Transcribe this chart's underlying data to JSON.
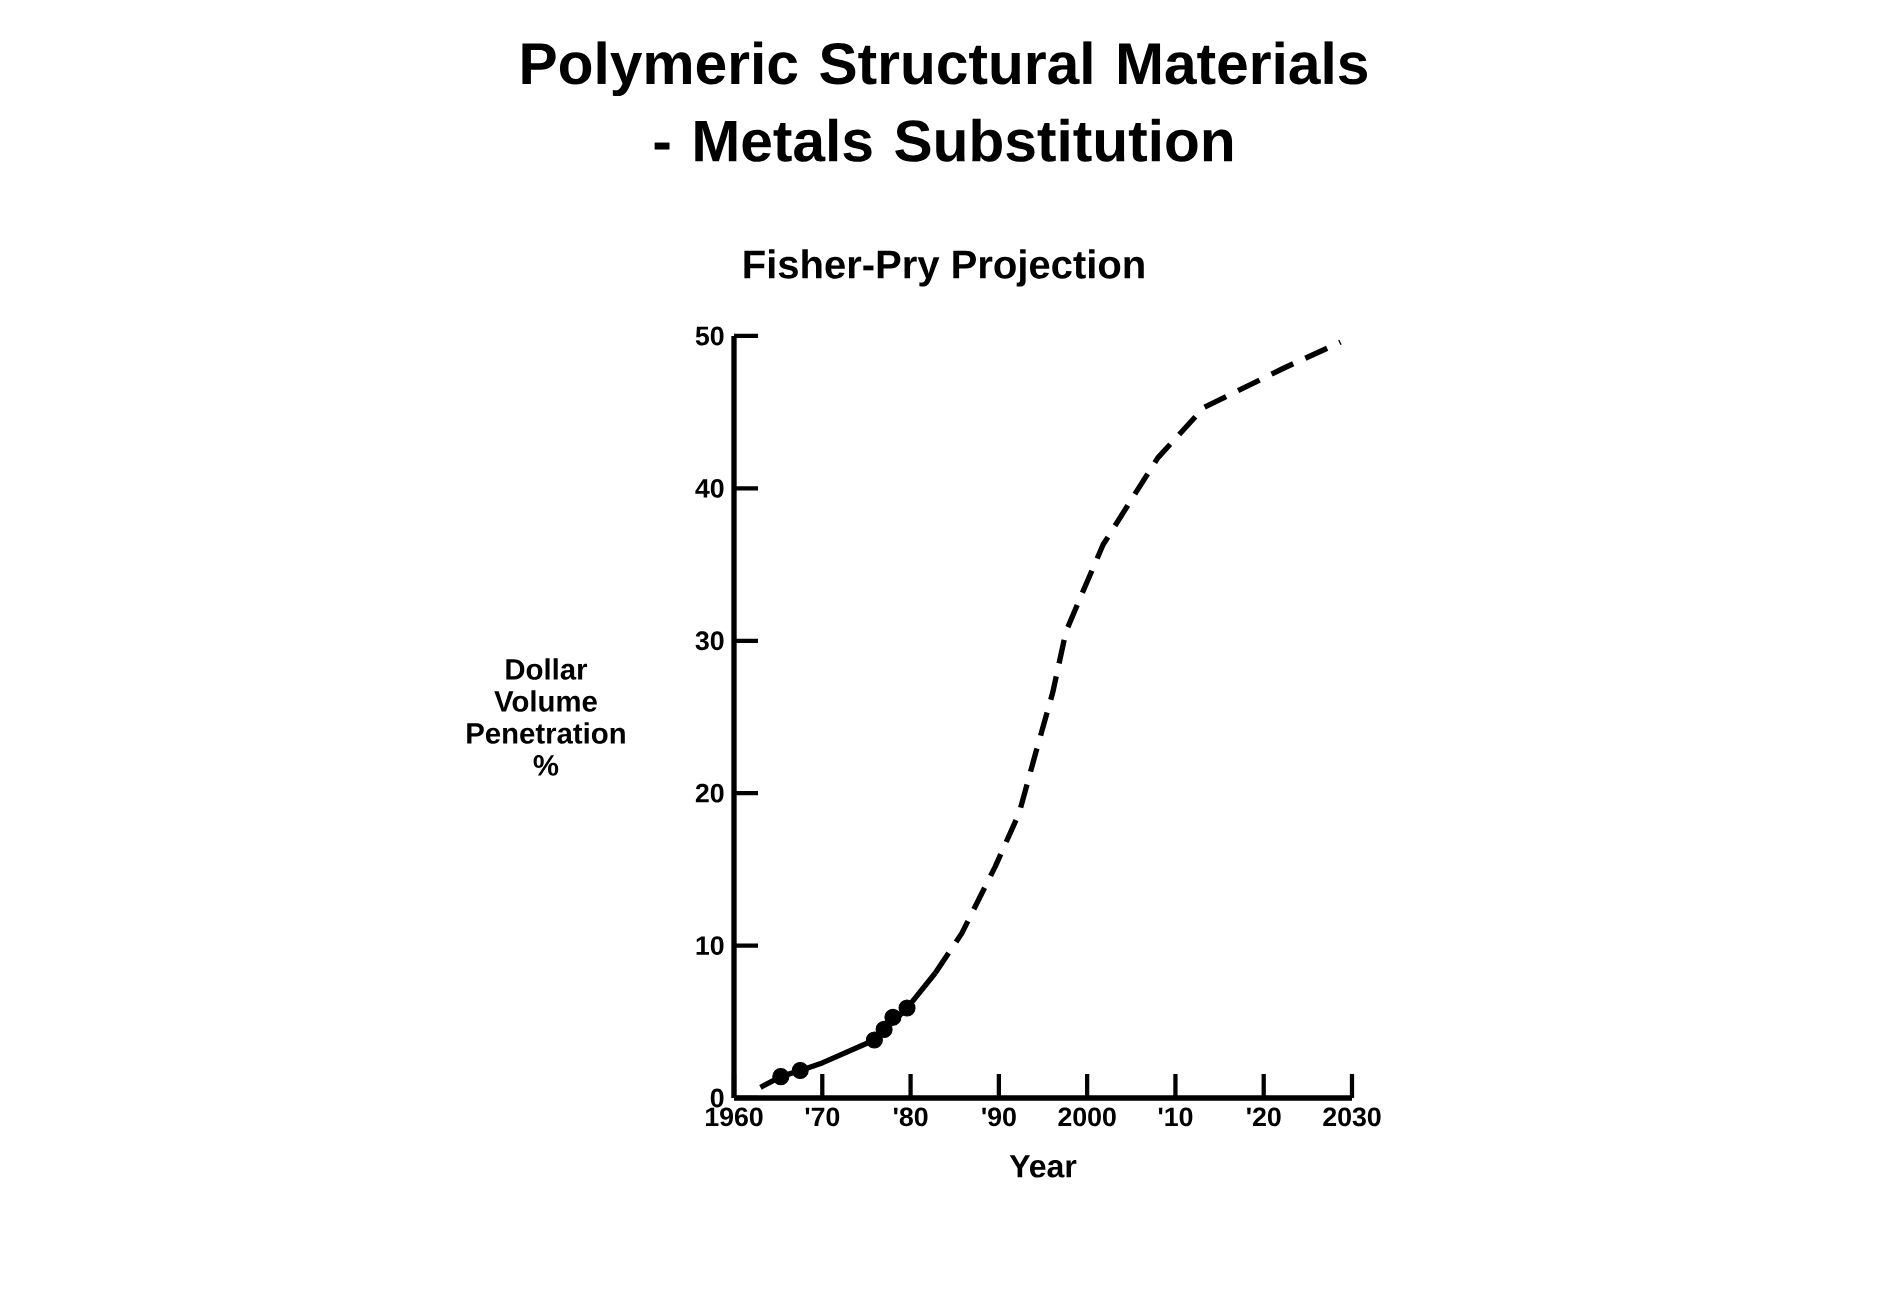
{
  "chart_data": {
    "type": "line",
    "title": "Polymeric Structural Materials - Metals Substitution",
    "subtitle": "Fisher-Pry Projection",
    "xlabel": "Year",
    "ylabel": "Dollar Volume Penetration %",
    "xlim": [
      1960,
      2030
    ],
    "ylim": [
      0,
      50
    ],
    "xticks": [
      {
        "value": 1960,
        "label": "1960"
      },
      {
        "value": 1970,
        "label": "'70"
      },
      {
        "value": 1980,
        "label": "'80"
      },
      {
        "value": 1990,
        "label": "'90"
      },
      {
        "value": 2000,
        "label": "2000"
      },
      {
        "value": 2010,
        "label": "'10"
      },
      {
        "value": 2020,
        "label": "'20"
      },
      {
        "value": 2030,
        "label": "2030"
      }
    ],
    "yticks": [
      0,
      10,
      20,
      30,
      40,
      50
    ],
    "series": [
      {
        "type": "scatter",
        "marker": "circle",
        "color": "#000000",
        "x": [
          1965.3,
          1967.5,
          1975.9,
          1977,
          1978,
          1979.6
        ],
        "values": [
          1.4,
          1.8,
          3.8,
          4.5,
          5.3,
          5.9
        ]
      },
      {
        "line_style": "solid",
        "marker": "none",
        "color": "#000000",
        "x": [
          1963,
          1965.3,
          1967.5,
          1970,
          1975.9,
          1979.6,
          1982.8
        ],
        "values": [
          0.7,
          1.4,
          1.8,
          2.3,
          3.8,
          5.9,
          8.2
        ]
      },
      {
        "line_style": "dashed",
        "marker": "none",
        "color": "#000000",
        "x": [
          1982.8,
          1985.8,
          1989.6,
          1992.3,
          1994.2,
          1996.1,
          1997.6,
          1999.5,
          2001.8,
          2005.6,
          2008,
          2013.2,
          2022.3,
          2028.7
        ],
        "values": [
          8.2,
          10.8,
          15.2,
          18.7,
          22.7,
          26.6,
          30.6,
          33.2,
          36.3,
          39.8,
          42.0,
          45.3,
          47.9,
          49.6
        ]
      }
    ]
  }
}
